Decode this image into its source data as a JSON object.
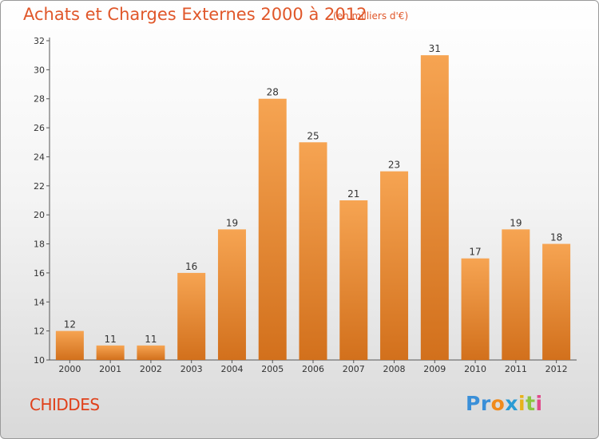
{
  "chart_data": {
    "type": "bar",
    "title": "Achats et Charges Externes 2000 à 2012",
    "unit_label": "(en milliers d'€)",
    "categories": [
      "2000",
      "2001",
      "2002",
      "2003",
      "2004",
      "2005",
      "2006",
      "2007",
      "2008",
      "2009",
      "2010",
      "2011",
      "2012"
    ],
    "values": [
      12,
      11,
      11,
      16,
      19,
      28,
      25,
      21,
      23,
      31,
      17,
      19,
      18
    ],
    "ylim": [
      10,
      32
    ],
    "yticks": [
      10,
      12,
      14,
      16,
      18,
      20,
      22,
      24,
      26,
      28,
      30,
      32
    ],
    "grid": false,
    "bar_color_top": "#f6a452",
    "bar_color_bottom": "#d2701c"
  },
  "commune": "CHIDDES",
  "logo": {
    "letters": [
      "P",
      "r",
      "o",
      "x",
      "i",
      "t",
      "i"
    ],
    "colors": [
      "#3a8fd8",
      "#3a8fd8",
      "#f08a1c",
      "#2a9bd4",
      "#e8b21a",
      "#8cc63f",
      "#e04a8a"
    ]
  }
}
